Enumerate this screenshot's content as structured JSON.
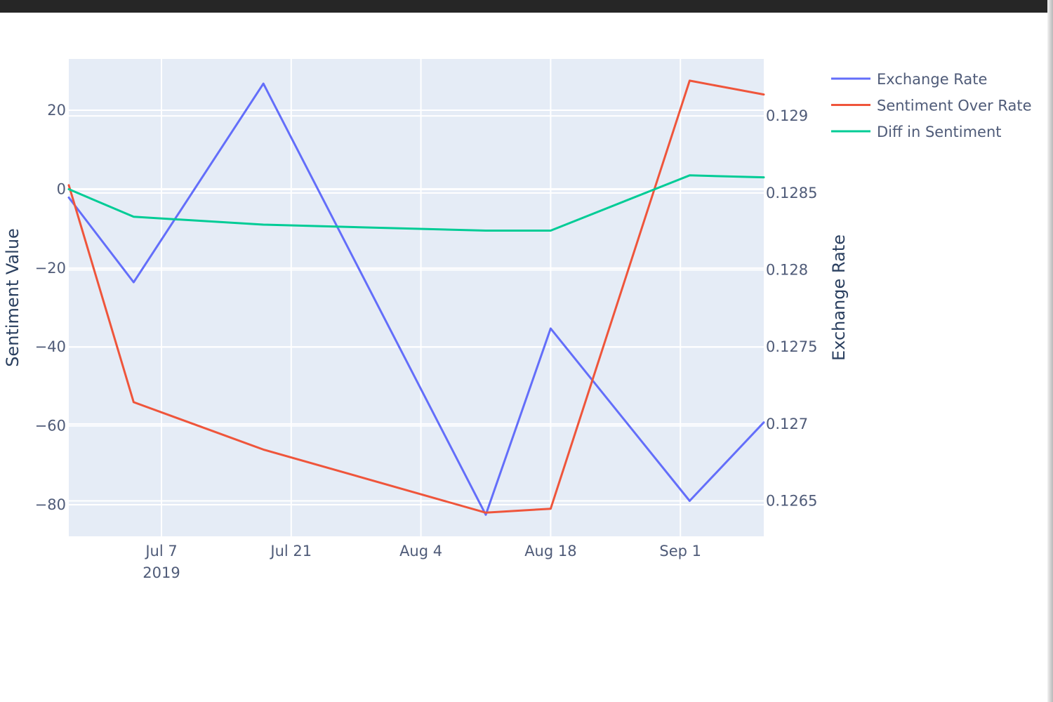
{
  "chart_data": {
    "type": "line",
    "x": [
      "2019-06-27",
      "2019-07-04",
      "2019-07-18",
      "2019-08-11",
      "2019-08-18",
      "2019-09-02",
      "2019-09-10"
    ],
    "series": [
      {
        "name": "Exchange Rate",
        "axis": "y2",
        "color": "#636efa",
        "values": [
          0.12847,
          0.12792,
          0.12921,
          0.12641,
          0.12762,
          0.1265,
          0.12701
        ]
      },
      {
        "name": "Sentiment Over Rate",
        "axis": "y1",
        "color": "#ef553b",
        "values": [
          1,
          -54,
          -66,
          -82,
          -81,
          27.5,
          24
        ]
      },
      {
        "name": "Diff in Sentiment",
        "axis": "y1",
        "color": "#00cc96",
        "values": [
          0,
          -7,
          -9,
          -10.5,
          -10.5,
          3.5,
          3
        ]
      }
    ],
    "xlabel": "",
    "ylabel": "Sentiment Value",
    "y2label": "Exchange Rate",
    "xlim": [
      "2019-06-27",
      "2019-09-10"
    ],
    "ylim": [
      -88,
      33
    ],
    "y2lim": [
      0.12627,
      0.12937
    ],
    "x_ticks": [
      {
        "date": "2019-07-07",
        "label": "Jul 7",
        "sub": "2019"
      },
      {
        "date": "2019-07-21",
        "label": "Jul 21",
        "sub": ""
      },
      {
        "date": "2019-08-04",
        "label": "Aug 4",
        "sub": ""
      },
      {
        "date": "2019-08-18",
        "label": "Aug 18",
        "sub": ""
      },
      {
        "date": "2019-09-01",
        "label": "Sep 1",
        "sub": ""
      }
    ],
    "y_ticks": [
      20,
      0,
      -20,
      -40,
      -60,
      -80
    ],
    "y_tick_labels": [
      "20",
      "0",
      "−20",
      "−40",
      "−60",
      "−80"
    ],
    "y2_ticks": [
      0.129,
      0.1285,
      0.128,
      0.1275,
      0.127,
      0.1265
    ],
    "y2_tick_labels": [
      "0.129",
      "0.1285",
      "0.128",
      "0.1275",
      "0.127",
      "0.1265"
    ],
    "grid": true,
    "legend_position": "top-right",
    "plot_bg": "#e5ecf6"
  }
}
